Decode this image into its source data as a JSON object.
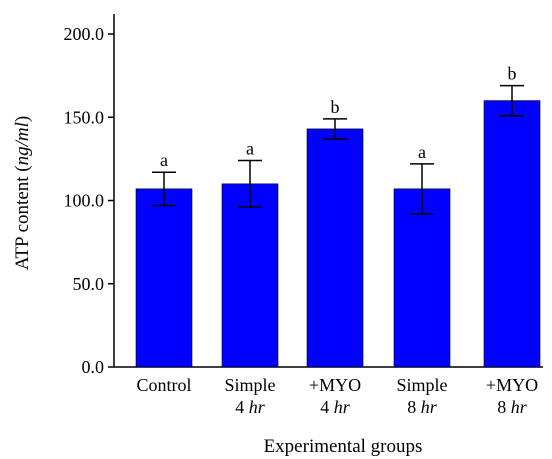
{
  "chart_data": {
    "type": "bar",
    "categories": [
      {
        "line1": "Control",
        "line2_num": "",
        "line2_unit": ""
      },
      {
        "line1": "Simple",
        "line2_num": "4",
        "line2_unit": "hr"
      },
      {
        "line1": "+MYO",
        "line2_num": "4",
        "line2_unit": "hr"
      },
      {
        "line1": "Simple",
        "line2_num": "8",
        "line2_unit": "hr"
      },
      {
        "line1": "+MYO",
        "line2_num": "8",
        "line2_unit": "hr"
      }
    ],
    "values": [
      107,
      110,
      143,
      107,
      160
    ],
    "errors": [
      10,
      14,
      6,
      15,
      9
    ],
    "significance": [
      "a",
      "a",
      "b",
      "a",
      "b"
    ],
    "ylabel": "ATP content",
    "ylabel_unit": "ng/ml",
    "xlabel": "Experimental groups",
    "ylim": [
      0,
      200
    ],
    "yticks": [
      "0.0",
      "50.0",
      "100.0",
      "150.0",
      "200.0"
    ],
    "bar_color": "#0000ff",
    "grid": false
  }
}
